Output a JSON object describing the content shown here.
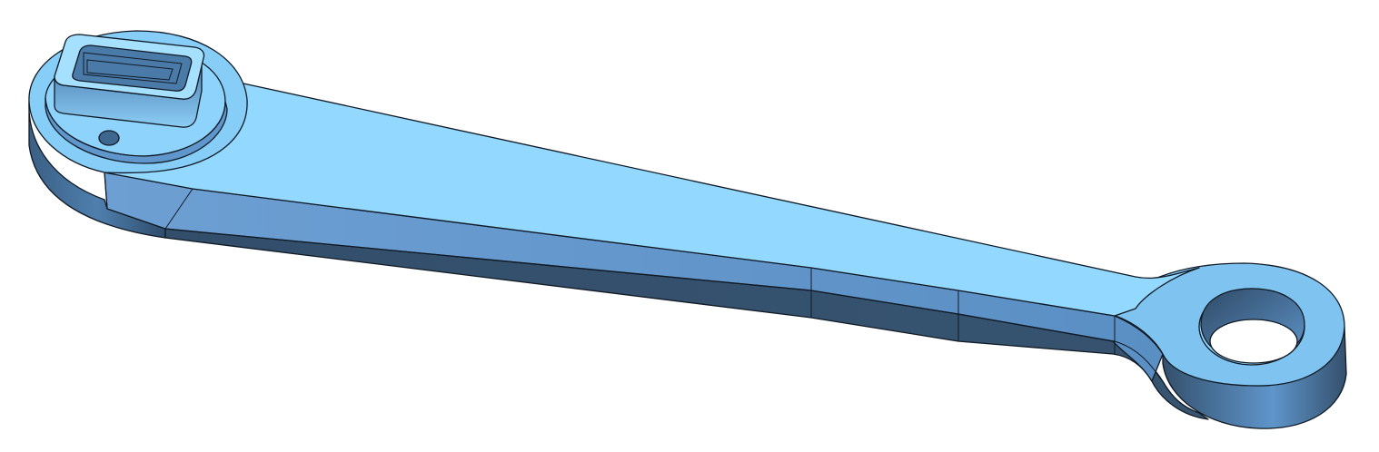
{
  "colors": {
    "background": "#ffffff",
    "top_face": "#93d8ff",
    "side_face_dark": "#35526f",
    "side_face_mid": "#5b8fc4",
    "bevel_face": "#5d92c8",
    "edge_line": "#111a24"
  }
}
